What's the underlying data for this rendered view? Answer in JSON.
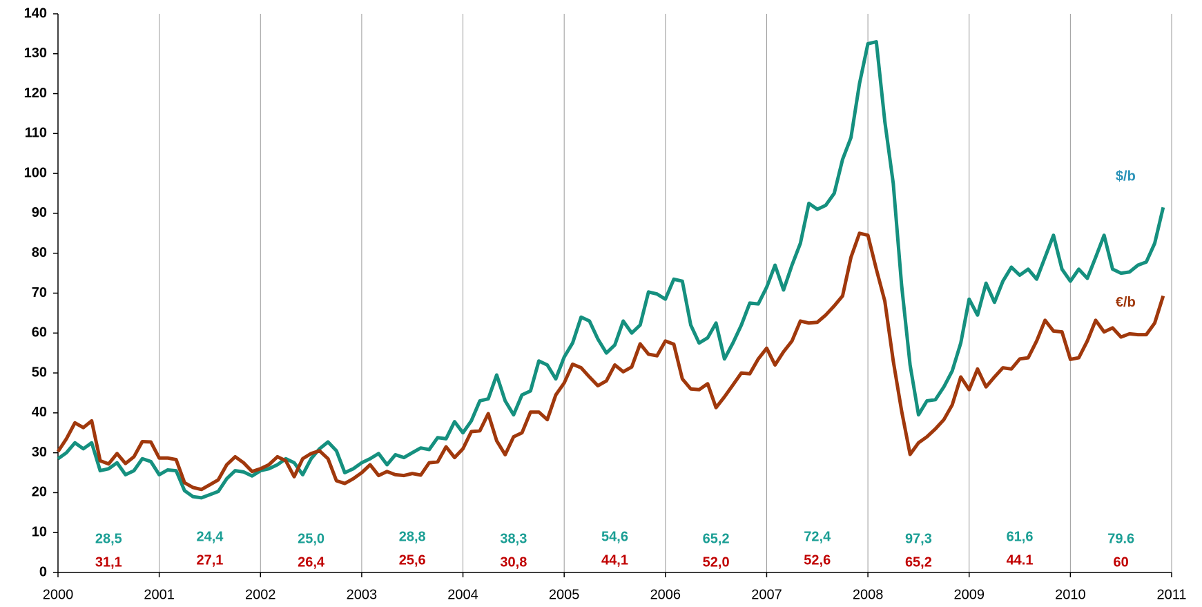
{
  "chart_data": {
    "type": "line",
    "x": [
      2000,
      2000.083,
      2000.167,
      2000.25,
      2000.333,
      2000.417,
      2000.5,
      2000.583,
      2000.667,
      2000.75,
      2000.833,
      2000.917,
      2001,
      2001.083,
      2001.167,
      2001.25,
      2001.333,
      2001.417,
      2001.5,
      2001.583,
      2001.667,
      2001.75,
      2001.833,
      2001.917,
      2002,
      2002.083,
      2002.167,
      2002.25,
      2002.333,
      2002.417,
      2002.5,
      2002.583,
      2002.667,
      2002.75,
      2002.833,
      2002.917,
      2003,
      2003.083,
      2003.167,
      2003.25,
      2003.333,
      2003.417,
      2003.5,
      2003.583,
      2003.667,
      2003.75,
      2003.833,
      2003.917,
      2004,
      2004.083,
      2004.167,
      2004.25,
      2004.333,
      2004.417,
      2004.5,
      2004.583,
      2004.667,
      2004.75,
      2004.833,
      2004.917,
      2005,
      2005.083,
      2005.167,
      2005.25,
      2005.333,
      2005.417,
      2005.5,
      2005.583,
      2005.667,
      2005.75,
      2005.833,
      2005.917,
      2006,
      2006.083,
      2006.167,
      2006.25,
      2006.333,
      2006.417,
      2006.5,
      2006.583,
      2006.667,
      2006.75,
      2006.833,
      2006.917,
      2007,
      2007.083,
      2007.167,
      2007.25,
      2007.333,
      2007.417,
      2007.5,
      2007.583,
      2007.667,
      2007.75,
      2007.833,
      2007.917,
      2008,
      2008.083,
      2008.167,
      2008.25,
      2008.333,
      2008.417,
      2008.5,
      2008.583,
      2008.667,
      2008.75,
      2008.833,
      2008.917,
      2009,
      2009.083,
      2009.167,
      2009.25,
      2009.333,
      2009.417,
      2009.5,
      2009.583,
      2009.667,
      2009.75,
      2009.833,
      2009.917,
      2010,
      2010.083,
      2010.167,
      2010.25,
      2010.333,
      2010.417,
      2010.5,
      2010.583,
      2010.667,
      2010.75,
      2010.833,
      2010.917
    ],
    "series": [
      {
        "name": "$/b",
        "color": "#15907f",
        "label_color": "#2b93b8",
        "values": [
          28.5,
          30,
          32.5,
          31,
          32.5,
          25.5,
          26,
          27.5,
          24.5,
          25.5,
          28.5,
          27.8,
          24.5,
          25.7,
          25.5,
          20.5,
          19,
          18.7,
          19.5,
          20.3,
          23.5,
          25.5,
          25.2,
          24.2,
          25.5,
          26,
          27,
          28.5,
          27.5,
          24.5,
          28.5,
          31,
          32.7,
          30.5,
          25,
          26,
          27.5,
          28.5,
          29.8,
          27,
          29.5,
          28.8,
          30,
          31.2,
          30.8,
          33.8,
          33.5,
          37.8,
          35,
          38,
          43,
          43.5,
          49.5,
          43,
          39.5,
          44.5,
          45.5,
          53,
          52,
          48.5,
          54,
          57.5,
          64,
          63,
          58.5,
          55,
          57,
          63,
          60,
          62,
          70.3,
          69.8,
          68.5,
          73.5,
          73,
          62,
          57.5,
          58.8,
          62.5,
          53.5,
          57.5,
          62,
          67.5,
          67.3,
          71.5,
          77,
          70.8,
          77,
          82.5,
          92.5,
          91,
          92,
          95,
          103.5,
          109,
          122.5,
          132.5,
          133,
          113,
          97.5,
          72,
          52,
          39.5,
          43,
          43.3,
          46.5,
          50.5,
          57.5,
          68.5,
          64.5,
          72.5,
          67.7,
          73,
          76.5,
          74.5,
          76,
          73.5,
          79,
          84.5,
          76,
          73,
          76,
          73.7,
          79,
          84.5,
          76,
          75,
          75.3,
          77,
          77.8,
          82.5,
          91.5
        ]
      },
      {
        "name": "€/b",
        "color": "#a0380c",
        "label_color": "#a0380c",
        "values": [
          30.3,
          33.5,
          37.5,
          36.3,
          38,
          28,
          27.2,
          29.8,
          27.3,
          29,
          32.8,
          32.7,
          28.7,
          28.7,
          28.3,
          22.5,
          21.3,
          20.8,
          22,
          23.2,
          27,
          29,
          27.5,
          25.3,
          26,
          27,
          29,
          28,
          24,
          28.5,
          29.8,
          30.5,
          28.5,
          23,
          22.3,
          23.5,
          25,
          27,
          24.3,
          25.3,
          24.5,
          24.3,
          24.8,
          24.4,
          27.5,
          27.7,
          31.5,
          28.8,
          31,
          35.3,
          35.5,
          39.8,
          33,
          29.5,
          34,
          35,
          40.2,
          40.2,
          38.3,
          44.5,
          47.5,
          52.2,
          51.3,
          49,
          46.8,
          48,
          52,
          50.3,
          51.5,
          57.3,
          54.7,
          54.3,
          58,
          57.2,
          48.5,
          46,
          45.8,
          47.3,
          41.3,
          44,
          47,
          50,
          49.8,
          53.5,
          56.2,
          52,
          55.3,
          58,
          63,
          62.5,
          62.7,
          64.5,
          66.8,
          69.3,
          79,
          85,
          84.5,
          76,
          68,
          53,
          40.5,
          29.6,
          32.5,
          34,
          36,
          38.3,
          42,
          49,
          45.8,
          51,
          46.5,
          49,
          51.3,
          51,
          53.5,
          53.8,
          58,
          63.2,
          60.5,
          60.3,
          53.4,
          53.8,
          58,
          63.2,
          60.3,
          61.3,
          59,
          59.8,
          59.6,
          59.6,
          62.5,
          69.3
        ]
      }
    ],
    "annual_averages": [
      {
        "color": "#1a9e94",
        "labels": [
          "28,5",
          "24,4",
          "25,0",
          "28,8",
          "38,3",
          "54,6",
          "65,2",
          "72,4",
          "97,3",
          "61,6",
          "79.6"
        ]
      },
      {
        "color": "#c00000",
        "labels": [
          "31,1",
          "27,1",
          "26,4",
          "25,6",
          "30,8",
          "44,1",
          "52,0",
          "52,6",
          "65,2",
          "44.1",
          "60"
        ]
      }
    ],
    "xlim": [
      2000,
      2011
    ],
    "xticks": [
      2000,
      2001,
      2002,
      2003,
      2004,
      2005,
      2006,
      2007,
      2008,
      2009,
      2010,
      2011
    ],
    "ylim": [
      0,
      140
    ],
    "yticks": [
      0,
      10,
      20,
      30,
      40,
      50,
      60,
      70,
      80,
      90,
      100,
      110,
      120,
      130,
      140
    ],
    "grid": "x"
  }
}
